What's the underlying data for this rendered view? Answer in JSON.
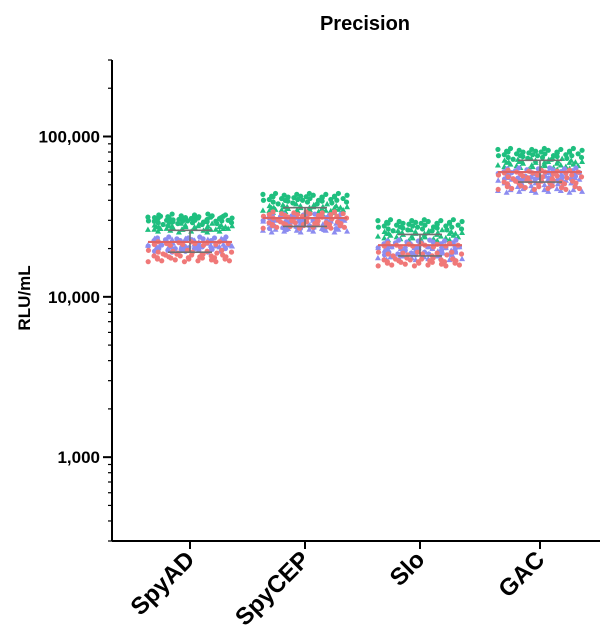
{
  "chart_data": {
    "type": "scatter",
    "title": "Precision",
    "xlabel": "",
    "ylabel": "RLU/mL",
    "yscale": "log",
    "ylim": [
      300,
      300000
    ],
    "yticks": [
      1000,
      10000,
      100000
    ],
    "ytick_labels": [
      "1,000",
      "10,000",
      "100,000"
    ],
    "categories": [
      "SpyAD",
      "SpyCEP",
      "Slo",
      "GAC"
    ],
    "grid": false,
    "legend": "none",
    "colors": {
      "green": "#1fbf7f",
      "purple": "#8c8cf0",
      "red": "#f07878",
      "mean_line": "#e06464",
      "error_bar": "#707070"
    },
    "groups": [
      {
        "category": "SpyAD",
        "mean": 22000,
        "sd_low": 19000,
        "sd_high": 26000,
        "levels": [
          {
            "shape": "circle",
            "color": "green",
            "values": [
              29000,
              30000,
              31000,
              32000
            ]
          },
          {
            "shape": "triangle",
            "color": "green",
            "values": [
              26000,
              27000,
              28000
            ]
          },
          {
            "shape": "triangle",
            "color": "purple",
            "values": [
              21000,
              22500
            ]
          },
          {
            "shape": "circle",
            "color": "purple",
            "values": [
              19500,
              20500,
              23000
            ]
          },
          {
            "shape": "circle",
            "color": "red",
            "values": [
              17000,
              18000,
              19000,
              21500
            ]
          }
        ]
      },
      {
        "category": "SpyCEP",
        "mean": 31000,
        "sd_low": 27500,
        "sd_high": 36000,
        "levels": [
          {
            "shape": "circle",
            "color": "green",
            "values": [
              39000,
              41000,
              43000
            ]
          },
          {
            "shape": "triangle",
            "color": "green",
            "values": [
              34000,
              35500,
              37000
            ]
          },
          {
            "shape": "triangle",
            "color": "purple",
            "values": [
              26000,
              28000,
              30000
            ]
          },
          {
            "shape": "circle",
            "color": "purple",
            "values": [
              27000,
              29500,
              32000
            ]
          },
          {
            "shape": "circle",
            "color": "red",
            "values": [
              27500,
              29000,
              31000,
              33000
            ]
          }
        ]
      },
      {
        "category": "Slo",
        "mean": 21000,
        "sd_low": 18000,
        "sd_high": 24500,
        "levels": [
          {
            "shape": "circle",
            "color": "green",
            "values": [
              26500,
              28000,
              29500
            ]
          },
          {
            "shape": "triangle",
            "color": "green",
            "values": [
              23000,
              24500,
              25500
            ]
          },
          {
            "shape": "triangle",
            "color": "purple",
            "values": [
              17500,
              19000,
              20500
            ]
          },
          {
            "shape": "circle",
            "color": "purple",
            "values": [
              18500,
              20000,
              22000
            ]
          },
          {
            "shape": "circle",
            "color": "red",
            "values": [
              16000,
              17000,
              18500,
              21000
            ]
          }
        ]
      },
      {
        "category": "GAC",
        "mean": 60000,
        "sd_low": 52000,
        "sd_high": 71000,
        "levels": [
          {
            "shape": "circle",
            "color": "green",
            "values": [
              74000,
              78000,
              82000
            ]
          },
          {
            "shape": "triangle",
            "color": "green",
            "values": [
              64000,
              68000,
              71000
            ]
          },
          {
            "shape": "triangle",
            "color": "purple",
            "values": [
              46000,
              50000,
              54000
            ]
          },
          {
            "shape": "circle",
            "color": "purple",
            "values": [
              55000,
              58000,
              62000
            ]
          },
          {
            "shape": "circle",
            "color": "red",
            "values": [
              48000,
              52000,
              56000,
              60000
            ]
          }
        ]
      }
    ]
  }
}
